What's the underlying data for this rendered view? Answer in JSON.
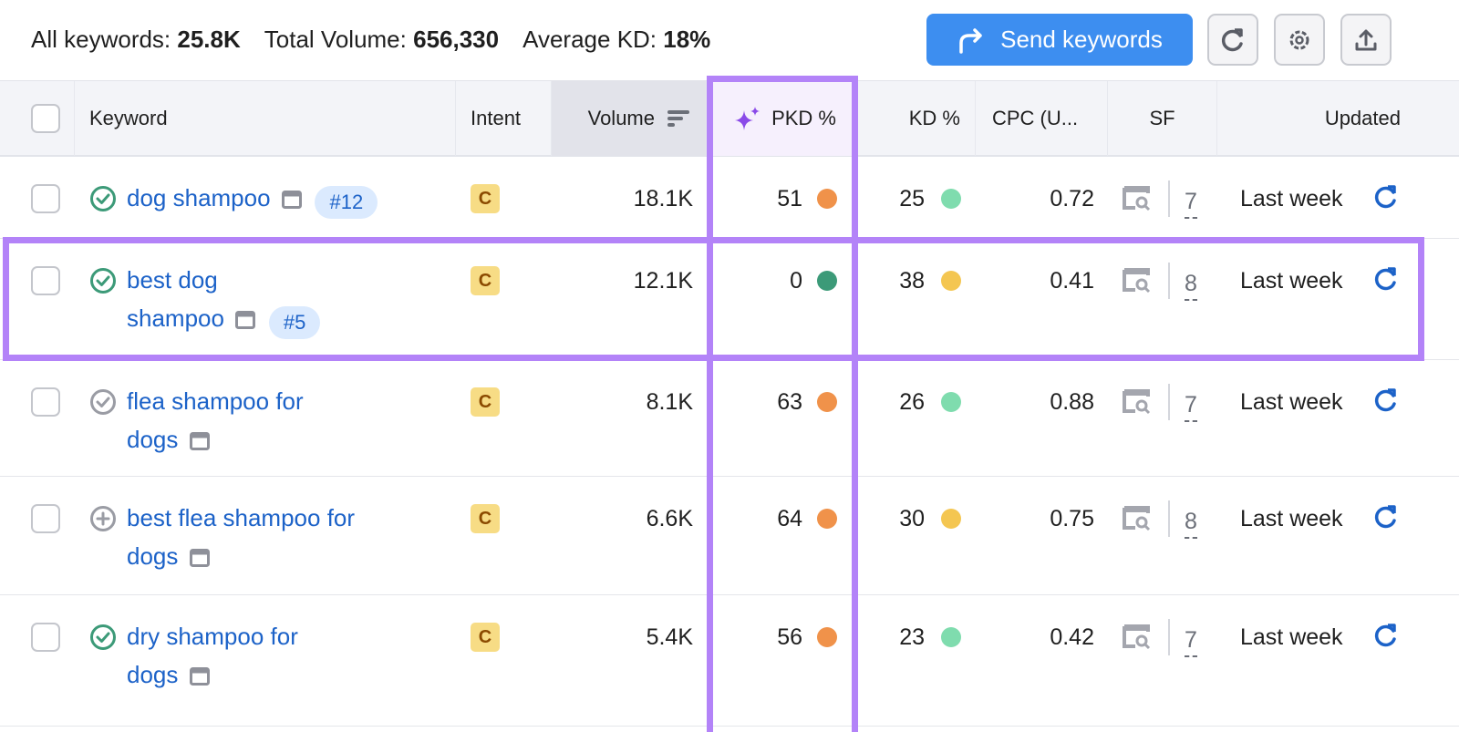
{
  "stats": {
    "all_keywords_label": "All keywords:",
    "all_keywords": "25.8K",
    "total_volume_label": "Total Volume:",
    "total_volume": "656,330",
    "avg_kd_label": "Average KD:",
    "avg_kd": "18%"
  },
  "toolbar": {
    "send_label": "Send keywords",
    "accent": "#3d8ef0"
  },
  "columns": {
    "keyword": "Keyword",
    "intent": "Intent",
    "volume": "Volume",
    "pkd": "PKD %",
    "kd": "KD %",
    "cpc": "CPC (U...",
    "sf": "SF",
    "updated": "Updated"
  },
  "rows": [
    {
      "kw1": "dog shampoo",
      "kw2": "",
      "rank": "#12",
      "status": "check",
      "intent": "C",
      "volume": "18.1K",
      "pkd": "51",
      "pkd_color": "#f0924a",
      "kd": "25",
      "kd_color": "#7fdcae",
      "cpc": "0.72",
      "sf": "7",
      "updated": "Last week"
    },
    {
      "kw1": "best dog",
      "kw2": "shampoo",
      "rank": "#5",
      "status": "check",
      "intent": "C",
      "volume": "12.1K",
      "pkd": "0",
      "pkd_color": "#3c9a78",
      "kd": "38",
      "kd_color": "#f4c651",
      "cpc": "0.41",
      "sf": "8",
      "updated": "Last week"
    },
    {
      "kw1": "flea shampoo for",
      "kw2": "dogs",
      "rank": "",
      "status": "check-gray",
      "intent": "C",
      "volume": "8.1K",
      "pkd": "63",
      "pkd_color": "#f0924a",
      "kd": "26",
      "kd_color": "#7fdcae",
      "cpc": "0.88",
      "sf": "7",
      "updated": "Last week"
    },
    {
      "kw1": "best flea shampoo for",
      "kw2": "dogs",
      "rank": "",
      "status": "plus",
      "intent": "C",
      "volume": "6.6K",
      "pkd": "64",
      "pkd_color": "#f0924a",
      "kd": "30",
      "kd_color": "#f4c651",
      "cpc": "0.75",
      "sf": "8",
      "updated": "Last week"
    },
    {
      "kw1": "dry shampoo for",
      "kw2": "dogs",
      "rank": "",
      "status": "check",
      "intent": "C",
      "volume": "5.4K",
      "pkd": "56",
      "pkd_color": "#f0924a",
      "kd": "23",
      "kd_color": "#7fdcae",
      "cpc": "0.42",
      "sf": "7",
      "updated": "Last week"
    }
  ]
}
